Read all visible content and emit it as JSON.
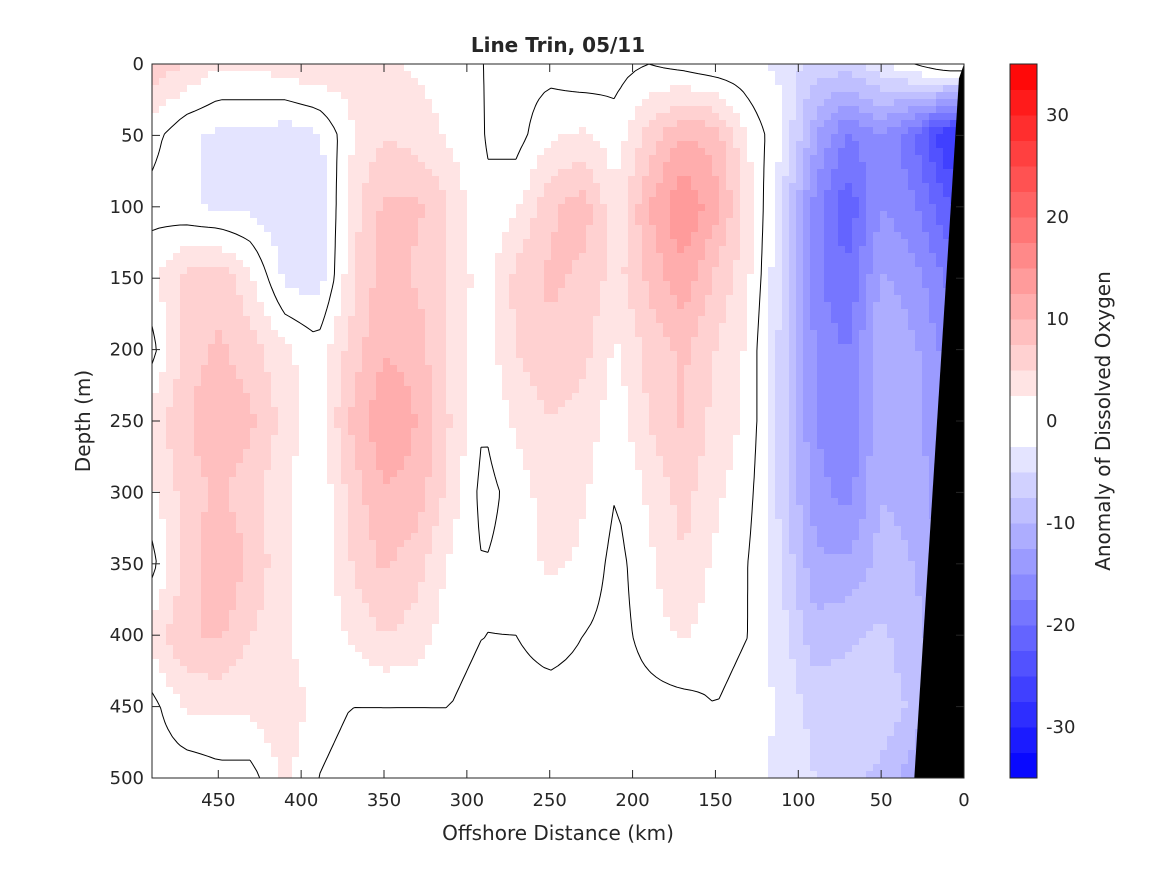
{
  "chart_data": {
    "type": "heatmap",
    "title": "Line Trin, 05/11",
    "xlabel": "Offshore Distance (km)",
    "ylabel": "Depth (m)",
    "colorbar_label": "Anomaly of Dissolved Oxygen",
    "xlim": [
      490,
      0
    ],
    "ylim": [
      0,
      500
    ],
    "x_reversed": true,
    "y_reversed": true,
    "x_ticks": [
      450,
      400,
      350,
      300,
      250,
      200,
      150,
      100,
      50,
      0
    ],
    "y_ticks": [
      0,
      50,
      100,
      150,
      200,
      250,
      300,
      350,
      400,
      450,
      500
    ],
    "clim": [
      -35,
      35
    ],
    "colorbar_ticks": [
      30,
      20,
      10,
      0,
      -10,
      -20,
      -30
    ],
    "contour_interval": 2.5,
    "colormap": {
      "negative": "#0000ff",
      "zero": "#ffffff",
      "positive": "#ff0000"
    },
    "zero_contour_color": "#000000",
    "land_mask_color": "#000000",
    "x": [
      490,
      470,
      450,
      430,
      410,
      390,
      370,
      350,
      330,
      310,
      290,
      270,
      250,
      230,
      210,
      190,
      170,
      150,
      130,
      110,
      90,
      70,
      50,
      30,
      10
    ],
    "y": [
      0,
      50,
      100,
      150,
      200,
      250,
      300,
      350,
      400,
      450,
      500
    ],
    "z": [
      [
        7,
        5,
        3,
        3,
        4,
        5,
        4,
        3,
        2,
        1,
        0,
        -1,
        -1,
        -2,
        -1,
        0,
        -1,
        -2,
        -2,
        -3,
        -6,
        -6,
        -3,
        0,
        3
      ],
      [
        1,
        -2,
        -3,
        -3,
        -4,
        -3,
        2,
        5,
        4,
        2,
        0,
        -1,
        2,
        3,
        1,
        6,
        10,
        9,
        2,
        -2,
        -12,
        -18,
        -15,
        -20,
        -28
      ],
      [
        -1,
        -2,
        -3,
        -3,
        -5,
        -5,
        4,
        8,
        8,
        5,
        0,
        2,
        7,
        9,
        3,
        10,
        15,
        11,
        4,
        -5,
        -16,
        -22,
        -15,
        -17,
        -22
      ],
      [
        2,
        6,
        7,
        3,
        -3,
        -4,
        4,
        9,
        7,
        5,
        1,
        6,
        8,
        7,
        4,
        8,
        12,
        7,
        3,
        -5,
        -17,
        -20,
        -12,
        -14,
        -18
      ],
      [
        -1,
        6,
        8,
        6,
        3,
        1,
        6,
        10,
        9,
        4,
        1,
        5,
        7,
        6,
        2,
        6,
        8,
        5,
        2,
        -6,
        -15,
        -18,
        -10,
        -12,
        -16
      ],
      [
        4,
        7,
        10,
        8,
        4,
        1,
        8,
        12,
        10,
        5,
        0,
        3,
        5,
        4,
        1,
        5,
        8,
        4,
        2,
        -6,
        -15,
        -18,
        -10,
        -12,
        -15
      ],
      [
        2,
        6,
        8,
        6,
        3,
        0,
        6,
        10,
        9,
        4,
        -1,
        1,
        4,
        3,
        0,
        3,
        6,
        3,
        1,
        -6,
        -14,
        -16,
        -10,
        -11,
        -14
      ],
      [
        -1,
        6,
        10,
        7,
        3,
        0,
        5,
        8,
        6,
        2,
        0,
        1,
        3,
        2,
        -1,
        2,
        5,
        2,
        0,
        -5,
        -12,
        -12,
        -9,
        -10,
        -14
      ],
      [
        4,
        7,
        8,
        5,
        3,
        0,
        3,
        5,
        4,
        1,
        0,
        0,
        1,
        0,
        -1,
        1,
        3,
        1,
        0,
        -4,
        -9,
        -8,
        -7,
        -9,
        -12
      ],
      [
        -1,
        3,
        3,
        3,
        5,
        1,
        0,
        0,
        0,
        0,
        -1,
        -1,
        -1,
        -1,
        -1,
        -1,
        -1,
        0,
        -1,
        -3,
        -6,
        -6,
        -6,
        -8,
        -12
      ],
      [
        -2,
        -2,
        -1,
        -1,
        3,
        0,
        -1,
        -1,
        -1,
        0,
        0,
        -1,
        -1,
        -2,
        -2,
        -2,
        -2,
        -2,
        -2,
        -3,
        -5,
        -7,
        -8,
        -12,
        -18
      ]
    ]
  }
}
